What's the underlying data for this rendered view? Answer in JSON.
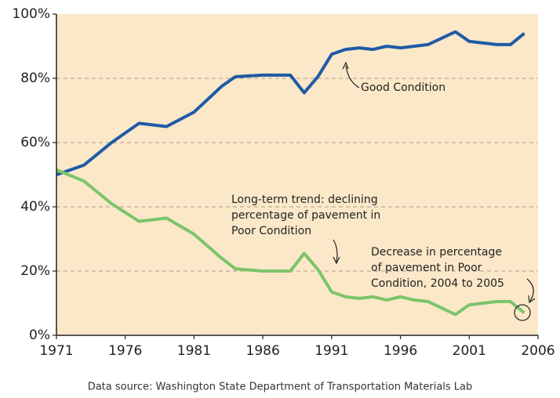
{
  "chart_data": {
    "type": "line",
    "x": [
      1971,
      1973,
      1975,
      1977,
      1979,
      1981,
      1983,
      1984,
      1986,
      1988,
      1989,
      1990,
      1991,
      1992,
      1993,
      1994,
      1995,
      1996,
      1997,
      1998,
      2000,
      2001,
      2002,
      2003,
      2004,
      2005
    ],
    "series": [
      {
        "name": "Good Condition",
        "color": "#1f5aa6",
        "values": [
          50,
          53,
          60,
          66,
          65,
          69.5,
          77.5,
          80.5,
          81,
          81,
          75.5,
          80.5,
          87.5,
          89,
          89.5,
          89,
          90,
          89.5,
          90,
          90.5,
          94.5,
          91.5,
          91,
          90.5,
          90.5,
          94
        ]
      },
      {
        "name": "Poor Condition",
        "color": "#7cc46b",
        "values": [
          51.5,
          48,
          41,
          35.5,
          36.5,
          31.5,
          24,
          20.7,
          20,
          20,
          25.5,
          20.5,
          13.5,
          12,
          11.5,
          12,
          11,
          12,
          11,
          10.5,
          6.5,
          9.5,
          10,
          10.5,
          10.5,
          7
        ]
      }
    ],
    "xlim": [
      1971,
      2006
    ],
    "xticks": [
      1971,
      1976,
      1981,
      1986,
      1991,
      1996,
      2001,
      2006
    ],
    "ylim": [
      0,
      100
    ],
    "yticks": [
      {
        "value": 0,
        "label": "0%"
      },
      {
        "value": 20,
        "label": "20%"
      },
      {
        "value": 40,
        "label": "40%"
      },
      {
        "value": 60,
        "label": "60%"
      },
      {
        "value": 80,
        "label": "80%"
      },
      {
        "value": 100,
        "label": "100%"
      }
    ],
    "grid": true,
    "annotations": [
      [
        "Good Condition"
      ],
      [
        "Long-term trend: declining",
        "percentage of pavement in",
        "Poor Condition"
      ],
      [
        "Decrease in percentage",
        "of pavement in Poor",
        "Condition, 2004 to 2005"
      ]
    ],
    "source": "Data source: Washington State Department of Transportation Materials Lab"
  }
}
